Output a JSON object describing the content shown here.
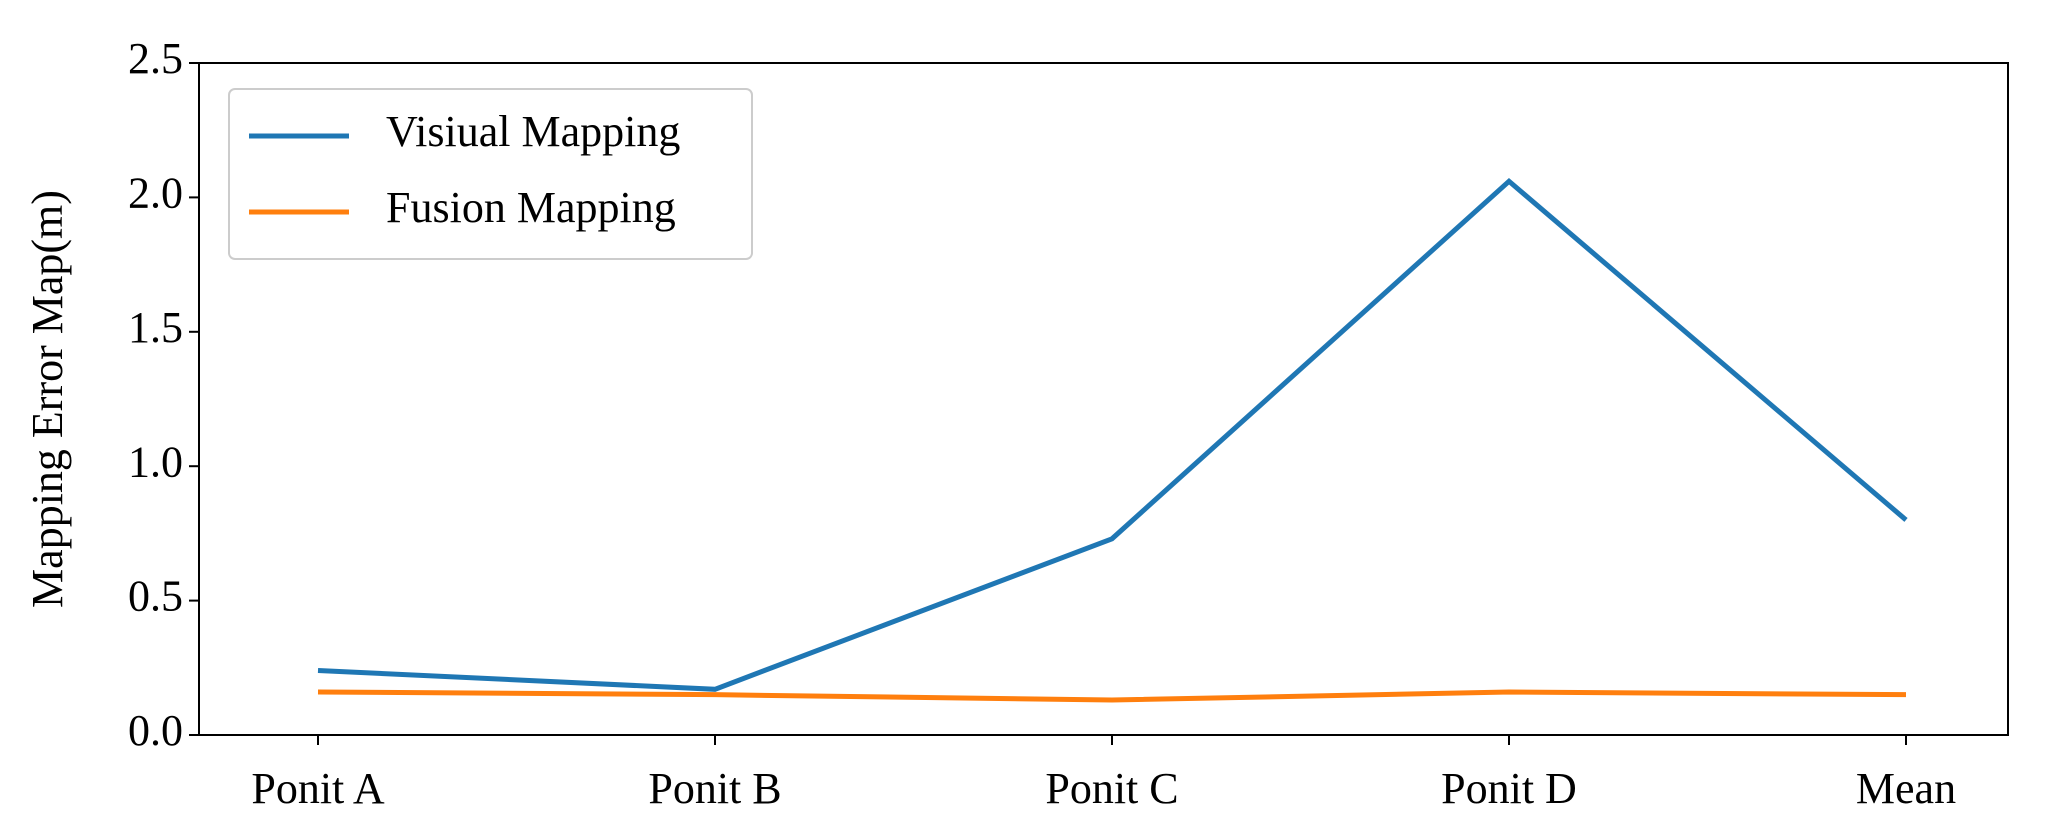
{
  "chart_data": {
    "type": "line",
    "y_label": "Mapping Error Map(m)",
    "categories": [
      "Ponit A",
      "Ponit B",
      "Ponit C",
      "Ponit D",
      "Mean"
    ],
    "series": [
      {
        "name": "Visiual Mapping",
        "color": "#1f77b4",
        "values": [
          0.24,
          0.17,
          0.73,
          2.06,
          0.8
        ]
      },
      {
        "name": "Fusion Mapping",
        "color": "#ff7f0e",
        "values": [
          0.16,
          0.15,
          0.13,
          0.16,
          0.15
        ]
      }
    ],
    "ylim": [
      0,
      2.5
    ],
    "yticks": [
      {
        "value": 0,
        "label": "0.0"
      },
      0.5,
      {
        "value": 1,
        "label": "1.0"
      },
      1.5,
      {
        "value": 2,
        "label": "2.0"
      },
      2.5
    ],
    "legend": "upper left"
  }
}
